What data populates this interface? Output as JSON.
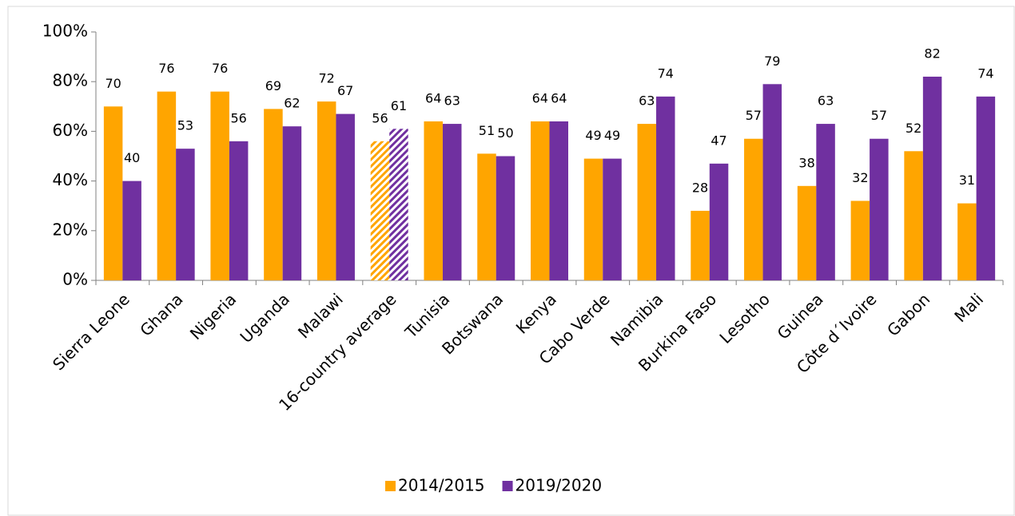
{
  "chart_data": {
    "type": "bar",
    "categories": [
      "Sierra Leone",
      "Ghana",
      "Nigeria",
      "Uganda",
      "Malawi",
      "16-country average",
      "Tunisia",
      "Botswana",
      "Kenya",
      "Cabo Verde",
      "Namibia",
      "Burkina Faso",
      "Lesotho",
      "Guinea",
      "Côte d´Ivoire",
      "Gabon",
      "Mali"
    ],
    "series": [
      {
        "name": "2014/2015",
        "color": "#FFA500",
        "values": [
          70,
          76,
          76,
          69,
          72,
          56,
          64,
          51,
          64,
          49,
          63,
          28,
          57,
          38,
          32,
          52,
          31
        ]
      },
      {
        "name": "2019/2020",
        "color": "#7030A0",
        "values": [
          40,
          53,
          56,
          62,
          67,
          61,
          63,
          50,
          64,
          49,
          74,
          47,
          79,
          63,
          57,
          82,
          74
        ]
      }
    ],
    "hatched": [
      5
    ],
    "ylim": [
      0,
      100
    ],
    "yticks": [
      {
        "value": 0,
        "label": "0%"
      },
      {
        "value": 20,
        "label": "20%"
      },
      {
        "value": 40,
        "label": "40%"
      },
      {
        "value": 60,
        "label": "60%"
      },
      {
        "value": 80,
        "label": "80%"
      },
      {
        "value": 100,
        "label": "100%"
      }
    ],
    "grid": false,
    "legend": "bottom"
  }
}
